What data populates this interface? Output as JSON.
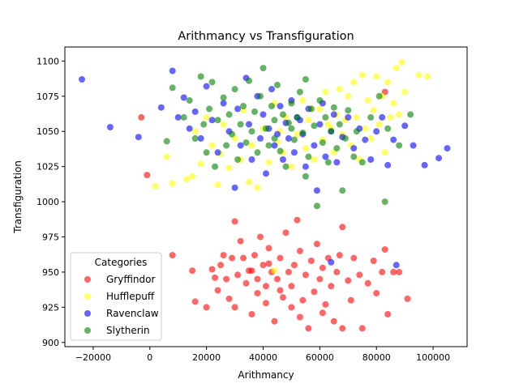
{
  "chart_data": {
    "type": "scatter",
    "title": "Arithmancy vs Transfiguration",
    "xlabel": "Arithmancy",
    "ylabel": "Transfiguration",
    "xlim": [
      -30000,
      112000
    ],
    "ylim": [
      897,
      1110
    ],
    "x_ticks": [
      -20000,
      0,
      20000,
      40000,
      60000,
      80000,
      100000
    ],
    "x_tick_labels": [
      "−20000",
      "0",
      "20000",
      "40000",
      "60000",
      "80000",
      "100000"
    ],
    "y_ticks": [
      900,
      925,
      950,
      975,
      1000,
      1025,
      1050,
      1075,
      1100
    ],
    "y_tick_labels": [
      "900",
      "925",
      "950",
      "975",
      "1000",
      "1025",
      "1050",
      "1075",
      "1100"
    ],
    "grid": false,
    "legend": {
      "title": "Categories",
      "placement": "lower-left"
    },
    "series": [
      {
        "name": "Gryffindor",
        "color": "#ff0000",
        "points": [
          [
            8000,
            962
          ],
          [
            15000,
            951
          ],
          [
            16000,
            929
          ],
          [
            20000,
            925
          ],
          [
            22000,
            952
          ],
          [
            23000,
            946
          ],
          [
            24000,
            937
          ],
          [
            25000,
            955
          ],
          [
            26000,
            962
          ],
          [
            27000,
            945
          ],
          [
            28000,
            931
          ],
          [
            29000,
            960
          ],
          [
            30000,
            986
          ],
          [
            30000,
            925
          ],
          [
            31000,
            948
          ],
          [
            32000,
            972
          ],
          [
            33000,
            960
          ],
          [
            34000,
            942
          ],
          [
            35000,
            951
          ],
          [
            36000,
            920
          ],
          [
            37000,
            962
          ],
          [
            38000,
            935
          ],
          [
            38000,
            945
          ],
          [
            39000,
            975
          ],
          [
            40000,
            955
          ],
          [
            41000,
            928
          ],
          [
            41000,
            940
          ],
          [
            42000,
            967
          ],
          [
            43000,
            950
          ],
          [
            44000,
            915
          ],
          [
            45000,
            945
          ],
          [
            46000,
            960
          ],
          [
            47000,
            932
          ],
          [
            48000,
            978
          ],
          [
            49000,
            950
          ],
          [
            50000,
            925
          ],
          [
            50000,
            940
          ],
          [
            51000,
            955
          ],
          [
            52000,
            987
          ],
          [
            53000,
            965
          ],
          [
            54000,
            930
          ],
          [
            55000,
            948
          ],
          [
            56000,
            910
          ],
          [
            57000,
            958
          ],
          [
            58000,
            936
          ],
          [
            59000,
            970
          ],
          [
            60000,
            945
          ],
          [
            61000,
            953
          ],
          [
            62000,
            927
          ],
          [
            63000,
            960
          ],
          [
            64000,
            940
          ],
          [
            65000,
            915
          ],
          [
            66000,
            950
          ],
          [
            67000,
            962
          ],
          [
            68000,
            982
          ],
          [
            68000,
            910
          ],
          [
            70000,
            944
          ],
          [
            71000,
            930
          ],
          [
            72000,
            960
          ],
          [
            74000,
            948
          ],
          [
            75000,
            910
          ],
          [
            77000,
            942
          ],
          [
            79000,
            958
          ],
          [
            80000,
            935
          ],
          [
            82000,
            950
          ],
          [
            83000,
            966
          ],
          [
            84000,
            920
          ],
          [
            86000,
            950
          ],
          [
            88000,
            950
          ],
          [
            91000,
            931
          ],
          [
            -3000,
            1060
          ],
          [
            -1000,
            1019
          ],
          [
            83000,
            1078
          ],
          [
            42000,
            956
          ],
          [
            46000,
            937
          ],
          [
            53000,
            918
          ],
          [
            36000,
            951
          ],
          [
            61000,
            921
          ]
        ]
      },
      {
        "name": "Hufflepuff",
        "color": "#ffff00",
        "points": [
          [
            2000,
            1011
          ],
          [
            6000,
            1032
          ],
          [
            8000,
            1013
          ],
          [
            13000,
            1016
          ],
          [
            15000,
            1018
          ],
          [
            16000,
            1050
          ],
          [
            18000,
            1027
          ],
          [
            20000,
            1060
          ],
          [
            22000,
            1040
          ],
          [
            24000,
            1012
          ],
          [
            25000,
            1034
          ],
          [
            26000,
            1055
          ],
          [
            28000,
            1024
          ],
          [
            30000,
            1045
          ],
          [
            32000,
            1030
          ],
          [
            33000,
            1065
          ],
          [
            35000,
            1014
          ],
          [
            36000,
            1040
          ],
          [
            38000,
            1010
          ],
          [
            40000,
            1052
          ],
          [
            42000,
            1028
          ],
          [
            44000,
            1070
          ],
          [
            45000,
            1042
          ],
          [
            47000,
            1035
          ],
          [
            48000,
            1060
          ],
          [
            50000,
            1025
          ],
          [
            52000,
            1048
          ],
          [
            54000,
            1072
          ],
          [
            55000,
            1038
          ],
          [
            56000,
            1058
          ],
          [
            58000,
            1030
          ],
          [
            60000,
            1066
          ],
          [
            61000,
            1044
          ],
          [
            62000,
            1078
          ],
          [
            63000,
            1055
          ],
          [
            65000,
            1035
          ],
          [
            66000,
            1062
          ],
          [
            67000,
            1080
          ],
          [
            68000,
            1048
          ],
          [
            70000,
            1075
          ],
          [
            71000,
            1040
          ],
          [
            72000,
            1085
          ],
          [
            73000,
            1060
          ],
          [
            74000,
            1030
          ],
          [
            75000,
            1090
          ],
          [
            76000,
            1052
          ],
          [
            77000,
            1072
          ],
          [
            78000,
            1045
          ],
          [
            79000,
            1065
          ],
          [
            80000,
            1089
          ],
          [
            81000,
            1055
          ],
          [
            82000,
            1075
          ],
          [
            83000,
            1035
          ],
          [
            84000,
            1085
          ],
          [
            85000,
            1060
          ],
          [
            86000,
            1070
          ],
          [
            87000,
            1095
          ],
          [
            88000,
            1062
          ],
          [
            89000,
            1099
          ],
          [
            90000,
            1078
          ],
          [
            95000,
            1090
          ],
          [
            98000,
            1089
          ],
          [
            64000,
            1052
          ],
          [
            57000,
            1066
          ],
          [
            69000,
            1058
          ],
          [
            46000,
            1050
          ],
          [
            44000,
            951
          ]
        ]
      },
      {
        "name": "Ravenclaw",
        "color": "#0000ff",
        "points": [
          [
            -24000,
            1087
          ],
          [
            -14000,
            1053
          ],
          [
            -4000,
            1046
          ],
          [
            4000,
            1067
          ],
          [
            8000,
            1093
          ],
          [
            10000,
            1060
          ],
          [
            12000,
            1074
          ],
          [
            14000,
            1052
          ],
          [
            16000,
            1064
          ],
          [
            18000,
            1045
          ],
          [
            20000,
            1082
          ],
          [
            22000,
            1058
          ],
          [
            24000,
            1035
          ],
          [
            26000,
            1070
          ],
          [
            28000,
            1050
          ],
          [
            30000,
            1010
          ],
          [
            31000,
            1066
          ],
          [
            32000,
            1040
          ],
          [
            34000,
            1088
          ],
          [
            35000,
            1055
          ],
          [
            36000,
            1030
          ],
          [
            38000,
            1075
          ],
          [
            39000,
            1045
          ],
          [
            40000,
            1062
          ],
          [
            41000,
            1020
          ],
          [
            42000,
            1052
          ],
          [
            43000,
            1080
          ],
          [
            44000,
            1040
          ],
          [
            46000,
            1068
          ],
          [
            47000,
            1030
          ],
          [
            48000,
            1056
          ],
          [
            49000,
            1045
          ],
          [
            50000,
            1072
          ],
          [
            51000,
            1035
          ],
          [
            52000,
            1060
          ],
          [
            54000,
            1048
          ],
          [
            55000,
            1025
          ],
          [
            56000,
            1066
          ],
          [
            58000,
            1040
          ],
          [
            59000,
            1008
          ],
          [
            60000,
            1055
          ],
          [
            61000,
            1070
          ],
          [
            62000,
            1032
          ],
          [
            64000,
            1050
          ],
          [
            65000,
            1062
          ],
          [
            66000,
            1028
          ],
          [
            68000,
            1046
          ],
          [
            70000,
            1060
          ],
          [
            72000,
            1038
          ],
          [
            74000,
            1052
          ],
          [
            76000,
            1044
          ],
          [
            78000,
            1030
          ],
          [
            80000,
            1050
          ],
          [
            82000,
            1060
          ],
          [
            84000,
            1026
          ],
          [
            86000,
            1044
          ],
          [
            87000,
            955
          ],
          [
            90000,
            1054
          ],
          [
            93000,
            1040
          ],
          [
            97000,
            1026
          ],
          [
            102000,
            1031
          ],
          [
            105000,
            1038
          ],
          [
            64000,
            957
          ],
          [
            45000,
            1048
          ],
          [
            53000,
            1058
          ]
        ]
      },
      {
        "name": "Slytherin",
        "color": "#008000",
        "points": [
          [
            6000,
            1043
          ],
          [
            8000,
            1081
          ],
          [
            12000,
            1060
          ],
          [
            14000,
            1072
          ],
          [
            16000,
            1045
          ],
          [
            18000,
            1089
          ],
          [
            19000,
            1055
          ],
          [
            20000,
            1035
          ],
          [
            21000,
            1066
          ],
          [
            22000,
            1085
          ],
          [
            23000,
            1025
          ],
          [
            24000,
            1058
          ],
          [
            26000,
            1074
          ],
          [
            27000,
            1040
          ],
          [
            28000,
            1062
          ],
          [
            29000,
            1048
          ],
          [
            30000,
            1080
          ],
          [
            31000,
            1030
          ],
          [
            32000,
            1055
          ],
          [
            33000,
            1068
          ],
          [
            34000,
            1042
          ],
          [
            35000,
            1086
          ],
          [
            36000,
            1050
          ],
          [
            37000,
            1064
          ],
          [
            38000,
            1035
          ],
          [
            39000,
            1075
          ],
          [
            40000,
            1095
          ],
          [
            41000,
            1052
          ],
          [
            42000,
            1040
          ],
          [
            43000,
            1068
          ],
          [
            44000,
            1058
          ],
          [
            45000,
            1083
          ],
          [
            46000,
            1036
          ],
          [
            47000,
            1062
          ],
          [
            48000,
            1025
          ],
          [
            49000,
            1056
          ],
          [
            50000,
            1070
          ],
          [
            51000,
            1044
          ],
          [
            52000,
            1060
          ],
          [
            53000,
            1078
          ],
          [
            54000,
            1049
          ],
          [
            55000,
            1087
          ],
          [
            56000,
            1032
          ],
          [
            57000,
            1066
          ],
          [
            58000,
            1054
          ],
          [
            59000,
            997
          ],
          [
            60000,
            1072
          ],
          [
            61000,
            1042
          ],
          [
            62000,
            1060
          ],
          [
            63000,
            1028
          ],
          [
            64000,
            1050
          ],
          [
            65000,
            1067
          ],
          [
            66000,
            1038
          ],
          [
            67000,
            1055
          ],
          [
            68000,
            1008
          ],
          [
            69000,
            1045
          ],
          [
            70000,
            1065
          ],
          [
            72000,
            1032
          ],
          [
            73000,
            1050
          ],
          [
            75000,
            1028
          ],
          [
            78000,
            1060
          ],
          [
            81000,
            1075
          ],
          [
            83000,
            1000
          ],
          [
            84000,
            1052
          ],
          [
            88000,
            1040
          ],
          [
            92000,
            1062
          ],
          [
            55000,
            1018
          ],
          [
            44000,
            1045
          ],
          [
            50000,
            1052
          ]
        ]
      }
    ]
  }
}
